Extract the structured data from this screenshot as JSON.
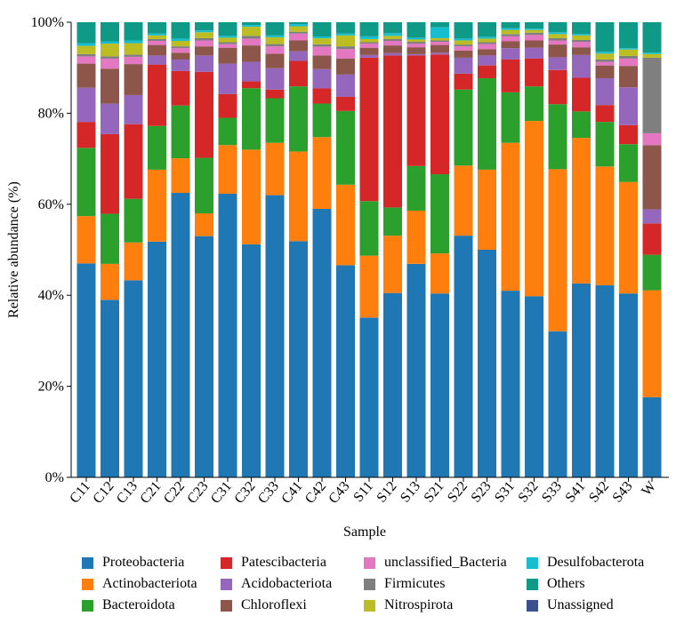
{
  "chart_data": {
    "type": "bar",
    "stacked": true,
    "title": "",
    "xlabel": "Sample",
    "ylabel": "Relative abundance (%)",
    "ylim": [
      0,
      100
    ],
    "yticks": [
      "0%",
      "20%",
      "40%",
      "60%",
      "80%",
      "100%"
    ],
    "categories": [
      "C11",
      "C12",
      "C13",
      "C21",
      "C22",
      "C23",
      "C31",
      "C32",
      "C33",
      "C41",
      "C42",
      "C43",
      "S11",
      "S12",
      "S13",
      "S21",
      "S22",
      "S23",
      "S31",
      "S32",
      "S33",
      "S41",
      "S42",
      "S43",
      "W"
    ],
    "series": [
      {
        "name": "Proteobacteria",
        "color": "#1f77b4",
        "values": [
          47.0,
          39.0,
          43.3,
          51.8,
          62.5,
          53.0,
          62.3,
          51.2,
          62.0,
          51.9,
          58.4,
          46.6,
          35.1,
          40.5,
          46.9,
          40.4,
          53.1,
          50.0,
          41.0,
          39.8,
          32.1,
          42.6,
          42.2,
          40.4,
          17.6
        ]
      },
      {
        "name": "Actinobacteriota",
        "color": "#ff7f0e",
        "values": [
          10.4,
          7.9,
          8.3,
          15.8,
          7.6,
          5.0,
          10.7,
          20.8,
          11.5,
          19.7,
          15.6,
          17.7,
          13.6,
          12.6,
          11.7,
          8.8,
          15.4,
          17.6,
          32.5,
          38.5,
          35.6,
          32.0,
          26.1,
          24.5,
          23.5
        ]
      },
      {
        "name": "Bacteroidota",
        "color": "#2ca02c",
        "values": [
          15.0,
          11.0,
          9.6,
          9.6,
          11.6,
          12.2,
          6.0,
          13.5,
          9.8,
          14.3,
          7.3,
          16.2,
          12.0,
          6.2,
          9.8,
          17.4,
          16.7,
          20.1,
          11.1,
          7.6,
          14.3,
          5.8,
          9.8,
          8.3,
          7.8
        ]
      },
      {
        "name": "Patescibacteria",
        "color": "#d62728",
        "values": [
          5.7,
          17.5,
          16.4,
          13.5,
          7.6,
          18.9,
          5.2,
          1.5,
          1.9,
          5.6,
          3.3,
          3.1,
          31.5,
          33.4,
          24.3,
          26.3,
          3.5,
          2.8,
          7.2,
          6.1,
          7.5,
          7.4,
          3.7,
          4.2,
          6.9
        ]
      },
      {
        "name": "Acidobacteriota",
        "color": "#9467bd",
        "values": [
          7.5,
          6.7,
          6.4,
          2.0,
          2.5,
          3.6,
          6.7,
          4.3,
          4.7,
          2.1,
          4.2,
          4.9,
          0.6,
          0.5,
          0.3,
          0.4,
          3.5,
          2.2,
          2.5,
          2.4,
          2.8,
          5.0,
          5.9,
          8.3,
          3.1
        ]
      },
      {
        "name": "Chloroflexi",
        "color": "#8c564b",
        "values": [
          5.3,
          7.7,
          6.8,
          2.3,
          1.5,
          2.0,
          3.5,
          3.6,
          3.2,
          2.4,
          3.0,
          3.5,
          1.6,
          1.7,
          1.5,
          1.7,
          1.6,
          1.4,
          1.5,
          1.6,
          2.8,
          1.7,
          2.8,
          4.7,
          14.1
        ]
      },
      {
        "name": "unclassified_Bacteria",
        "color": "#e377c2",
        "values": [
          1.6,
          2.2,
          1.6,
          0.9,
          1.0,
          1.3,
          0.8,
          1.5,
          1.6,
          1.5,
          1.9,
          2.1,
          0.9,
          1.0,
          0.8,
          0.7,
          0.9,
          1.1,
          1.1,
          1.2,
          0.9,
          1.2,
          0.8,
          1.6,
          2.6
        ]
      },
      {
        "name": "Firmicutes",
        "color": "#7f7f7f",
        "values": [
          0.5,
          0.5,
          0.5,
          0.4,
          0.4,
          0.5,
          0.4,
          0.6,
          0.5,
          0.4,
          0.5,
          0.6,
          0.3,
          0.4,
          0.4,
          0.3,
          0.4,
          0.4,
          0.5,
          0.5,
          0.5,
          0.4,
          0.5,
          0.6,
          16.6
        ]
      },
      {
        "name": "Nitrospirota",
        "color": "#bcbd22",
        "values": [
          1.8,
          2.8,
          2.5,
          0.8,
          1.2,
          1.3,
          1.0,
          2.0,
          1.5,
          1.2,
          1.3,
          2.4,
          0.7,
          0.7,
          0.5,
          0.5,
          0.9,
          0.8,
          0.9,
          0.6,
          0.9,
          1.0,
          1.3,
          1.4,
          0.8
        ]
      },
      {
        "name": "Desulfobacterota",
        "color": "#17becf",
        "values": [
          0.6,
          0.5,
          0.6,
          0.4,
          0.5,
          0.4,
          0.4,
          0.4,
          0.4,
          0.5,
          0.4,
          0.4,
          0.6,
          0.6,
          0.4,
          2.4,
          0.4,
          0.4,
          0.4,
          0.3,
          0.4,
          0.3,
          0.4,
          0.3,
          0.3
        ]
      },
      {
        "name": "Others",
        "color": "#0f9a88",
        "values": [
          4.6,
          4.2,
          4.0,
          2.5,
          3.6,
          1.8,
          3.0,
          0.6,
          2.9,
          0.4,
          3.1,
          2.5,
          3.1,
          2.4,
          3.4,
          1.1,
          3.6,
          3.2,
          1.3,
          1.4,
          2.2,
          2.6,
          6.5,
          5.7,
          6.7
        ]
      },
      {
        "name": "Unassigned",
        "color": "#3b4f8c",
        "values": [
          0,
          0,
          0,
          0,
          0,
          0,
          0,
          0,
          0,
          0,
          0,
          0,
          0,
          0,
          0,
          0,
          0,
          0,
          0,
          0,
          0,
          0,
          0,
          0,
          0
        ]
      }
    ],
    "legend_order": [
      [
        "Proteobacteria",
        "Patescibacteria",
        "unclassified_Bacteria",
        "Desulfobacterota"
      ],
      [
        "Actinobacteriota",
        "Acidobacteriota",
        "Firmicutes",
        "Others"
      ],
      [
        "Bacteroidota",
        "Chloroflexi",
        "Nitrospirota",
        "Unassigned"
      ]
    ],
    "legend_position": "bottom",
    "grid": false
  }
}
